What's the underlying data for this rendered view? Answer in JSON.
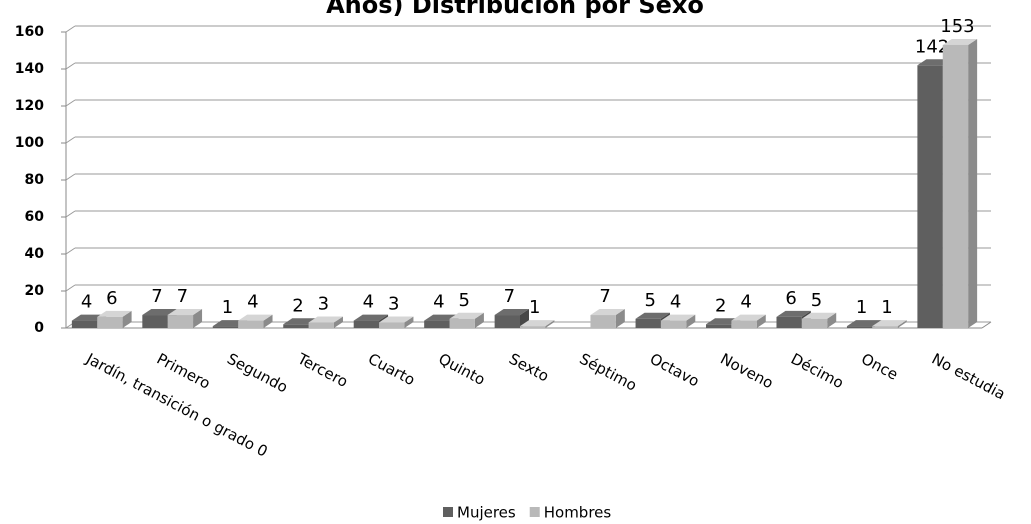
{
  "chart_data": {
    "type": "bar3d",
    "title": "Años) Distribución por Sexo",
    "categories": [
      "Jardín, transición o grado 0",
      "Primero",
      "Segundo",
      "Tercero",
      "Cuarto",
      "Quinto",
      "Sexto",
      "Séptimo",
      "Octavo",
      "Noveno",
      "Décimo",
      "Once",
      "No estudia"
    ],
    "series": [
      {
        "name": "Mujeres",
        "color": "#5f5f5f",
        "values": [
          4,
          7,
          1,
          2,
          4,
          4,
          7,
          null,
          5,
          2,
          6,
          1,
          142
        ]
      },
      {
        "name": "Hombres",
        "color": "#b9b9b9",
        "values": [
          6,
          7,
          4,
          3,
          3,
          5,
          1,
          7,
          4,
          4,
          5,
          1,
          153
        ]
      }
    ],
    "ylim": [
      0,
      160
    ],
    "yticks": [
      0,
      20,
      40,
      60,
      80,
      100,
      120,
      140,
      160
    ],
    "grid": true,
    "legend": "bottom"
  }
}
